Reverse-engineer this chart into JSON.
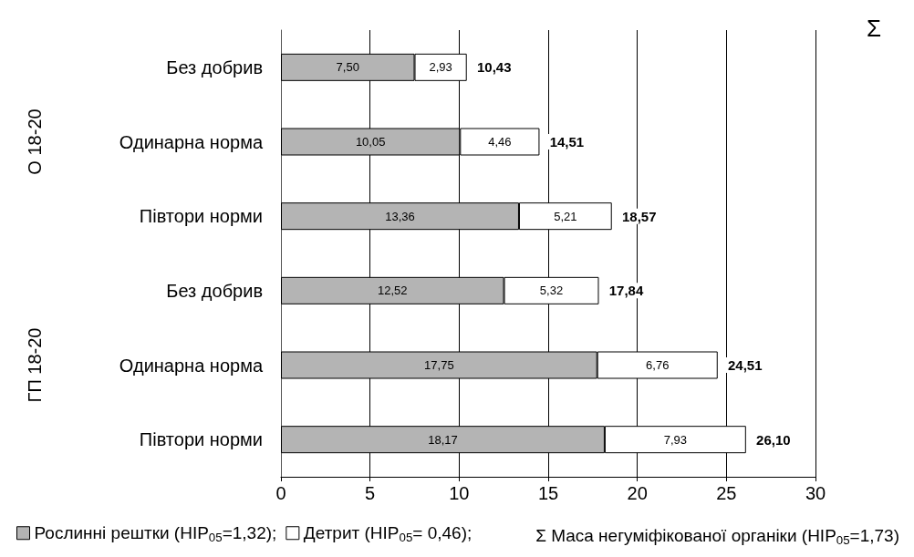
{
  "chart_data": {
    "type": "bar",
    "orientation": "horizontal",
    "stacked": true,
    "categories": [
      "Без добрив",
      "Одинарна норма",
      "Півтори норми",
      "Без добрив",
      "Одинарна норма",
      "Півтори норми"
    ],
    "series": [
      {
        "name": "Рослинні рештки (НІР$_{05}$=1,32);",
        "color": "#b4b4b4",
        "values": [
          7.5,
          10.05,
          13.36,
          12.52,
          17.75,
          18.17
        ],
        "value_labels": [
          "7,50",
          "10,05",
          "13,36",
          "12,52",
          "17,75",
          "18,17"
        ]
      },
      {
        "name": "Детрит (НІР$_{05}$= 0,46);",
        "color": "#ffffff",
        "values": [
          2.93,
          4.46,
          5.21,
          5.32,
          6.76,
          7.93
        ],
        "value_labels": [
          "2,93",
          "4,46",
          "5,21",
          "5,32",
          "6,76",
          "7,93"
        ]
      }
    ],
    "totals": [
      "10,43",
      "14,51",
      "18,57",
      "17,84",
      "24,51",
      "26,10"
    ],
    "annotations": [
      "Σ",
      "О 18-20",
      "ГП 18-20",
      "Σ Маса негуміфікованої органіки (НІР$_{05}$=1,73)"
    ],
    "xlim": [
      0,
      30
    ],
    "xticks": [
      0,
      5,
      10,
      15,
      20,
      25,
      30
    ],
    "grid": "x",
    "legend": "bottom"
  }
}
